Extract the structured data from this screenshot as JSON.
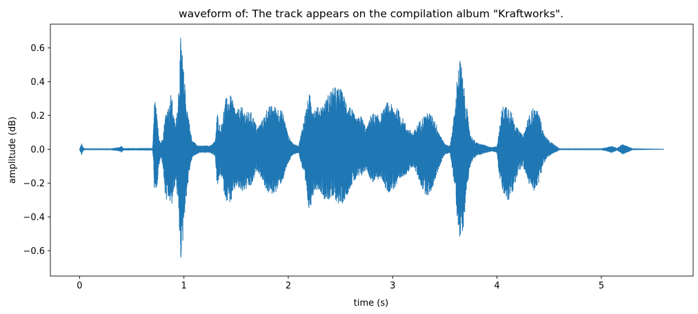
{
  "chart_data": {
    "type": "line",
    "title": "waveform of: The track appears on the compilation album \"Kraftworks\".",
    "xlabel": "time (s)",
    "ylabel": "amplitude (dB)",
    "xlim": [
      -0.28,
      5.88
    ],
    "ylim": [
      -0.75,
      0.74
    ],
    "x_ticks": [
      0,
      1,
      2,
      3,
      4,
      5
    ],
    "x_tick_labels": [
      "0",
      "1",
      "2",
      "3",
      "4",
      "5"
    ],
    "y_ticks": [
      0.6,
      0.4,
      0.2,
      0.0,
      -0.2,
      -0.4,
      -0.6
    ],
    "y_tick_labels": [
      "0.6",
      "0.4",
      "0.2",
      "0.0",
      "−0.2",
      "−0.4",
      "−0.6"
    ],
    "grid": false,
    "series": [
      {
        "color": "#1f77b4",
        "duration": 5.6,
        "envelope": {
          "t": [
            0.0,
            0.02,
            0.03,
            0.05,
            0.3,
            0.38,
            0.4,
            0.42,
            0.7,
            0.71,
            0.72,
            0.74,
            0.76,
            0.78,
            0.8,
            0.82,
            0.84,
            0.86,
            0.88,
            0.9,
            0.92,
            0.94,
            0.96,
            0.97,
            0.98,
            0.99,
            1.0,
            1.02,
            1.04,
            1.06,
            1.08,
            1.1,
            1.12,
            1.15,
            1.2,
            1.25,
            1.3,
            1.32,
            1.35,
            1.4,
            1.45,
            1.5,
            1.55,
            1.6,
            1.65,
            1.7,
            1.75,
            1.8,
            1.85,
            1.9,
            1.95,
            2.0,
            2.05,
            2.1,
            2.15,
            2.2,
            2.25,
            2.3,
            2.35,
            2.4,
            2.45,
            2.5,
            2.55,
            2.6,
            2.65,
            2.7,
            2.75,
            2.8,
            2.85,
            2.9,
            2.95,
            3.0,
            3.05,
            3.1,
            3.15,
            3.2,
            3.25,
            3.3,
            3.35,
            3.4,
            3.45,
            3.5,
            3.55,
            3.6,
            3.62,
            3.65,
            3.68,
            3.7,
            3.72,
            3.75,
            3.8,
            3.85,
            3.9,
            3.95,
            4.0,
            4.02,
            4.05,
            4.1,
            4.15,
            4.2,
            4.25,
            4.3,
            4.35,
            4.4,
            4.45,
            4.5,
            4.6,
            4.8,
            5.0,
            5.05,
            5.1,
            5.15,
            5.2,
            5.3,
            5.6
          ],
          "pos": [
            0.0,
            0.035,
            0.012,
            0.003,
            0.003,
            0.01,
            0.02,
            0.005,
            0.005,
            0.14,
            0.33,
            0.2,
            0.08,
            0.04,
            0.08,
            0.2,
            0.25,
            0.26,
            0.35,
            0.2,
            0.15,
            0.28,
            0.5,
            0.68,
            0.62,
            0.5,
            0.45,
            0.3,
            0.22,
            0.12,
            0.05,
            0.04,
            0.03,
            0.02,
            0.02,
            0.02,
            0.05,
            0.22,
            0.12,
            0.3,
            0.32,
            0.23,
            0.25,
            0.22,
            0.22,
            0.13,
            0.17,
            0.25,
            0.26,
            0.25,
            0.22,
            0.08,
            0.03,
            0.02,
            0.18,
            0.33,
            0.25,
            0.25,
            0.28,
            0.35,
            0.37,
            0.36,
            0.3,
            0.25,
            0.18,
            0.2,
            0.12,
            0.22,
            0.2,
            0.22,
            0.28,
            0.26,
            0.24,
            0.18,
            0.12,
            0.1,
            0.16,
            0.2,
            0.22,
            0.18,
            0.1,
            0.03,
            0.02,
            0.25,
            0.45,
            0.55,
            0.38,
            0.3,
            0.2,
            0.08,
            0.04,
            0.03,
            0.02,
            0.01,
            0.02,
            0.1,
            0.25,
            0.28,
            0.2,
            0.12,
            0.08,
            0.19,
            0.25,
            0.22,
            0.09,
            0.05,
            0.003,
            0.003,
            0.003,
            0.01,
            0.02,
            0.005,
            0.03,
            0.003,
            0.0
          ],
          "neg": [
            0.0,
            0.035,
            0.012,
            0.003,
            0.003,
            0.01,
            0.02,
            0.005,
            0.005,
            0.1,
            0.31,
            0.25,
            0.1,
            0.05,
            0.1,
            0.28,
            0.33,
            0.3,
            0.35,
            0.28,
            0.18,
            0.3,
            0.52,
            0.65,
            0.68,
            0.55,
            0.42,
            0.3,
            0.2,
            0.1,
            0.05,
            0.04,
            0.03,
            0.02,
            0.02,
            0.02,
            0.04,
            0.24,
            0.14,
            0.3,
            0.32,
            0.22,
            0.26,
            0.24,
            0.22,
            0.12,
            0.18,
            0.26,
            0.27,
            0.24,
            0.18,
            0.08,
            0.03,
            0.02,
            0.16,
            0.38,
            0.24,
            0.24,
            0.3,
            0.3,
            0.3,
            0.34,
            0.29,
            0.22,
            0.18,
            0.16,
            0.12,
            0.2,
            0.18,
            0.18,
            0.26,
            0.24,
            0.22,
            0.16,
            0.14,
            0.1,
            0.18,
            0.26,
            0.28,
            0.2,
            0.1,
            0.03,
            0.02,
            0.25,
            0.42,
            0.55,
            0.45,
            0.3,
            0.2,
            0.08,
            0.04,
            0.03,
            0.02,
            0.01,
            0.02,
            0.15,
            0.25,
            0.32,
            0.26,
            0.14,
            0.1,
            0.2,
            0.25,
            0.2,
            0.08,
            0.04,
            0.003,
            0.003,
            0.003,
            0.01,
            0.02,
            0.005,
            0.03,
            0.003,
            0.0
          ]
        }
      }
    ]
  }
}
